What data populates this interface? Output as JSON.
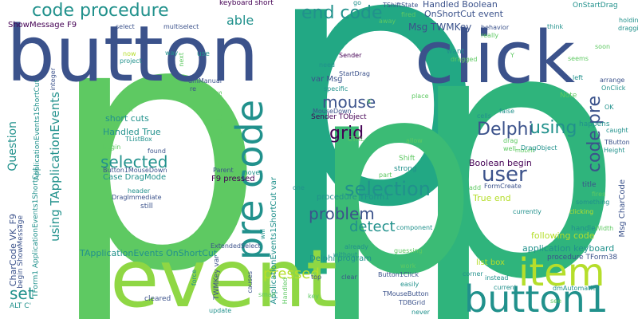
{
  "colors": {
    "background": "#ffffff",
    "palette": [
      "#440154",
      "#3b528b",
      "#21918c",
      "#22a884",
      "#5ec962",
      "#8fd744",
      "#fde725"
    ]
  },
  "words": {
    "p1": "p",
    "p2": "p",
    "p3": "p",
    "p4": "p",
    "button": "button",
    "click": "click",
    "event": "event",
    "button1": "button1",
    "item": "item",
    "pre_code": "pre code",
    "code_procedure": "code procedure",
    "end_code": "end code",
    "using": "using",
    "user": "user",
    "delphi": "Delphi",
    "selection": "selection",
    "problem": "problem",
    "grid": "grid",
    "mouse": "mouse",
    "selected": "selected",
    "code_pre": "code pre",
    "pressed": "pressed",
    "detect": "detect",
    "set": "set",
    "able": "able",
    "using_tapplicationevents": "using TApplicationEvents",
    "question": "Question",
    "handled_boolean": "Handled Boolean",
    "onshortcut_event": "OnShortCut event",
    "onstartdrag": "OnStartDrag",
    "keyboard_short": "keyboard short",
    "showmessage_f9": "ShowMessage F9",
    "msg_twmkey": "Msg TWMKey",
    "var_msg": "var Msg",
    "sender_tobject": "Sender TObject",
    "boolean_begin": "Boolean begin",
    "true_end": "True end",
    "procedure_tform1": "procedure TForm1",
    "delphi_program": "Delphi program",
    "f9_pressed": "F9 pressed",
    "handled_true": "Handled True",
    "short_cuts": "short cuts",
    "case_dragmode": "Case DragMode",
    "tapplicationevents_onshortcut": "TApplicationEvents OnShortCut",
    "application_keyboard": "application keyboard",
    "procedure_tform38": "procedure TForm38",
    "following_code": "following code",
    "list_box": "list box",
    "msg_charcode": "Msg CharCode",
    "charcode_vk_f9": "CharCode VK_F9",
    "begin_showmessage": "begin ShowMessage",
    "tform1_applicationevents1shortcut": "TForm1 ApplicationEvents1ShortCut",
    "applicationevents1shortcut_var": "ApplicationEvents1ShortCut var",
    "applicationevents1shortcut": "ApplicationEvents1ShortCut",
    "twmkey_var": "TWMKey var",
    "alt_c": "ALT C'",
    "shift": "Shift",
    "strong": "strong",
    "note": "Note",
    "happens": "happens",
    "title": "title",
    "tbutton": "TButton",
    "height": "Height",
    "caught": "caught",
    "ok": "OK",
    "handle": "handle",
    "width": "Width",
    "something": "something",
    "clicking": "clicking",
    "fires": "fires",
    "currently": "currently",
    "formcreate": "FormCreate",
    "add": "add",
    "cells": "cells",
    "false": "false",
    "tshiftstate": "TShiftState",
    "fired": "fired",
    "behavior": "behavior",
    "really": "really",
    "think": "think",
    "holding": "holding",
    "dragging": "dragging",
    "arrange": "arrange",
    "onclick": "OnClick",
    "left": "left",
    "seems": "seems",
    "soon": "soon",
    "want": "want",
    "dragged": "dragged",
    "sender": "Sender",
    "startdrag": "StartDrag",
    "need": "need",
    "specific": "specific",
    "mousedown": "MouseDown",
    "go": "go",
    "away": "away",
    "place": "place",
    "allow": "allow",
    "ctrl": "CTRL",
    "drag": "drag",
    "mbleft": "mbLeft",
    "well": "well",
    "dragobject": "DragObject",
    "multiselect": "multiselect",
    "select": "select",
    "now": "now",
    "project": "project",
    "way": "way",
    "next": "next",
    "use": "use",
    "integer": "integer",
    "dmmanual": "dmManual",
    "re": "re",
    "multiple_items": "multiple items",
    "assign": "assign",
    "tlistbox": "TListBox",
    "begin": "begin",
    "found": "found",
    "button1mousedown": "Button1MouseDown",
    "parent": "Parent",
    "moves": "moves",
    "header": "header",
    "dragimmediate": "DragImmediate",
    "still": "still",
    "one": "one",
    "part": "part",
    "component": "component",
    "guessing": "guessing",
    "extendedselect": "ExtendedSelect",
    "without": "without",
    "already": "already",
    "clear": "clear",
    "top": "top",
    "button1click": "Button1Click",
    "work": "work",
    "easily": "easily",
    "tmousebutton": "TMouseButton",
    "tdbgrid": "TDBGrid",
    "never": "never",
    "key": "key",
    "cleared": "cleared",
    "update": "update",
    "small": "small",
    "causes": "causes",
    "force": "force",
    "will": "will",
    "handled": "Handled",
    "instead": "instead",
    "corner": "corner",
    "current": "current",
    "dmautomatic": "dmAutomatic",
    "see": "see",
    "x": "X",
    "y": "Y"
  }
}
